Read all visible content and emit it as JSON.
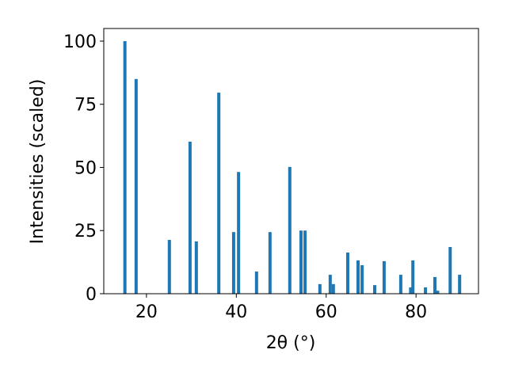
{
  "chart_data": {
    "type": "bar",
    "xlabel": "2θ (°)",
    "ylabel": "Intensities (scaled)",
    "x": [
      15.2,
      17.7,
      25.1,
      29.7,
      31.1,
      36.1,
      39.4,
      40.5,
      44.5,
      47.5,
      51.9,
      54.4,
      55.3,
      58.6,
      60.9,
      61.6,
      64.8,
      67.1,
      68.0,
      70.8,
      72.9,
      76.6,
      78.8,
      79.3,
      82.1,
      84.2,
      84.8,
      87.6,
      89.7
    ],
    "values": [
      100,
      85,
      21.3,
      60.2,
      20.7,
      79.6,
      24.4,
      48.2,
      8.8,
      24.4,
      50.2,
      25,
      25,
      3.8,
      7.5,
      3.8,
      16.3,
      13.2,
      11.3,
      3.4,
      12.9,
      7.5,
      2.5,
      13.2,
      2.5,
      6.6,
      1.2,
      18.5,
      7.5
    ],
    "color": "#1f77b4",
    "xlim": [
      10.5,
      93.9
    ],
    "xticks": [
      20,
      40,
      60,
      80
    ],
    "ylim": [
      0,
      105
    ],
    "yticks": [
      0,
      25,
      50,
      75,
      100
    ]
  }
}
